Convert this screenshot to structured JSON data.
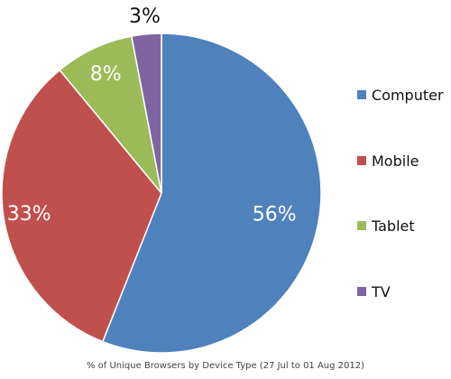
{
  "chart_data": {
    "type": "pie",
    "title": "",
    "caption": "% of Unique Browsers by Device Type (27 Jul to 01 Aug 2012)",
    "slices": [
      {
        "label": "Computer",
        "value": 56,
        "display": "56%",
        "color": "#4f81bd"
      },
      {
        "label": "Mobile",
        "value": 33,
        "display": "33%",
        "color": "#c0504d"
      },
      {
        "label": "Tablet",
        "value": 8,
        "display": "8%",
        "color": "#9bbb59"
      },
      {
        "label": "TV",
        "value": 3,
        "display": "3%",
        "color": "#8064a2"
      }
    ],
    "legend_position": "right"
  }
}
